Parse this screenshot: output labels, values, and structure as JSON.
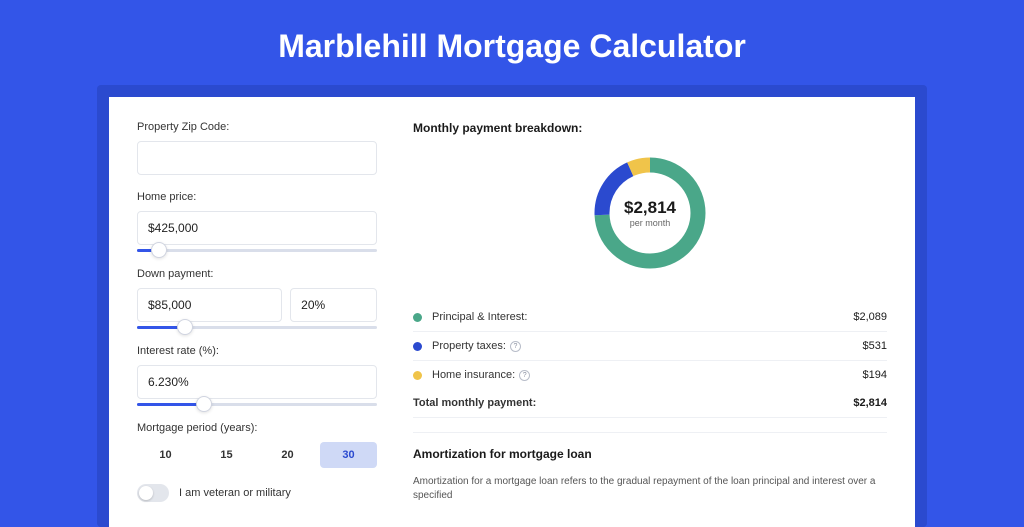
{
  "title": "Marblehill Mortgage Calculator",
  "background_color": "#3355e8",
  "card_shadow_color": "#2b4acf",
  "form": {
    "zip": {
      "label": "Property Zip Code:",
      "value": ""
    },
    "home_price": {
      "label": "Home price:",
      "value": "$425,000",
      "slider_pct": 9
    },
    "down_payment": {
      "label": "Down payment:",
      "amount": "$85,000",
      "percent": "20%",
      "slider_pct": 20
    },
    "interest": {
      "label": "Interest rate (%):",
      "value": "6.230%",
      "slider_pct": 28
    },
    "period": {
      "label": "Mortgage period (years):",
      "options": [
        "10",
        "15",
        "20",
        "30"
      ],
      "selected_index": 3
    },
    "veteran": {
      "label": "I am veteran or military",
      "checked": false
    }
  },
  "breakdown": {
    "heading": "Monthly payment breakdown:",
    "donut": {
      "value": "$2,814",
      "sub": "per month",
      "slices": [
        {
          "key": "principal_interest",
          "pct": 74.2,
          "color": "#4aa789"
        },
        {
          "key": "property_taxes",
          "pct": 18.9,
          "color": "#2b4acf"
        },
        {
          "key": "home_insurance",
          "pct": 6.9,
          "color": "#f0c44a"
        }
      ],
      "donut_thickness": 15
    },
    "rows": [
      {
        "dot": "#4aa789",
        "label": "Principal & Interest:",
        "value": "$2,089",
        "help": false
      },
      {
        "dot": "#2b4acf",
        "label": "Property taxes:",
        "value": "$531",
        "help": true
      },
      {
        "dot": "#f0c44a",
        "label": "Home insurance:",
        "value": "$194",
        "help": true
      }
    ],
    "total": {
      "label": "Total monthly payment:",
      "value": "$2,814"
    }
  },
  "amortization": {
    "heading": "Amortization for mortgage loan",
    "text": "Amortization for a mortgage loan refers to the gradual repayment of the loan principal and interest over a specified"
  }
}
